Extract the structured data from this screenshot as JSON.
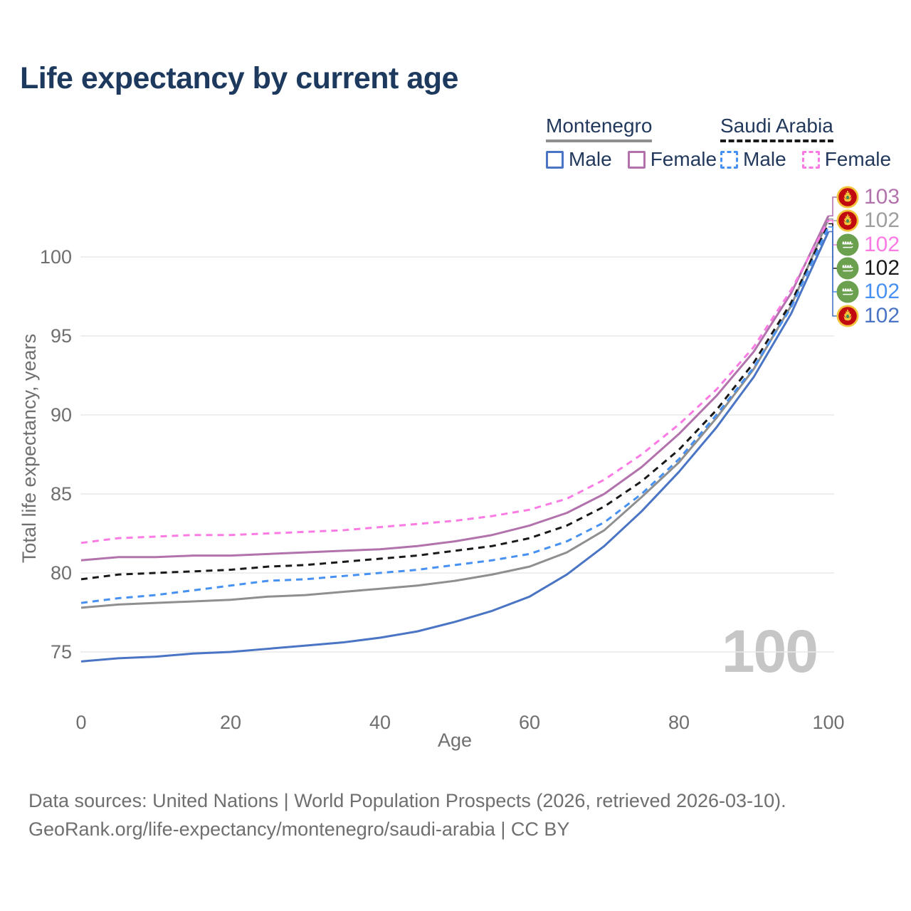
{
  "title": "Life expectancy by current age",
  "legend": {
    "groups": [
      {
        "label": "Montenegro",
        "line_style": "solid",
        "underline_color": "#8f8f8f",
        "items": [
          {
            "label": "Male",
            "color": "#4a74c4",
            "dashed": false
          },
          {
            "label": "Female",
            "color": "#b273ac",
            "dashed": false
          }
        ]
      },
      {
        "label": "Saudi Arabia",
        "line_style": "dashed",
        "underline_color": "#1a1a1a",
        "items": [
          {
            "label": "Male",
            "color": "#4691f1",
            "dashed": true
          },
          {
            "label": "Female",
            "color": "#fb7be4",
            "dashed": true
          }
        ]
      }
    ]
  },
  "chart_data": {
    "type": "line",
    "title": "Life expectancy by current age",
    "xlabel": "Age",
    "ylabel": "Total life expectancy, years",
    "xlim": [
      0,
      100
    ],
    "ylim": [
      73.5,
      103.5
    ],
    "xticks": [
      0,
      20,
      40,
      60,
      80,
      100
    ],
    "yticks": [
      75,
      80,
      85,
      90,
      95,
      100
    ],
    "grid": true,
    "legend_position": "top-right",
    "watermark": "100",
    "x": [
      0,
      5,
      10,
      15,
      20,
      25,
      30,
      35,
      40,
      45,
      50,
      55,
      60,
      65,
      70,
      75,
      80,
      85,
      90,
      95,
      100
    ],
    "series": [
      {
        "name": "Montenegro — Total",
        "country": "Montenegro",
        "sex": "Both",
        "color": "#8f8f8f",
        "dash": null,
        "values": [
          77.8,
          78.0,
          78.1,
          78.2,
          78.3,
          78.5,
          78.6,
          78.8,
          79.0,
          79.2,
          79.5,
          79.9,
          80.4,
          81.3,
          82.7,
          84.8,
          87.0,
          89.8,
          92.9,
          96.9,
          102.4
        ]
      },
      {
        "name": "Montenegro — Female",
        "country": "Montenegro",
        "sex": "Female",
        "color": "#b273ac",
        "dash": null,
        "values": [
          80.8,
          81.0,
          81.0,
          81.1,
          81.1,
          81.2,
          81.3,
          81.4,
          81.5,
          81.7,
          82.0,
          82.4,
          83.0,
          83.8,
          85.0,
          86.7,
          88.8,
          91.2,
          94.0,
          97.7,
          102.6
        ]
      },
      {
        "name": "Montenegro — Male",
        "country": "Montenegro",
        "sex": "Male",
        "color": "#4a74c4",
        "dash": null,
        "values": [
          74.4,
          74.6,
          74.7,
          74.9,
          75.0,
          75.2,
          75.4,
          75.6,
          75.9,
          76.3,
          76.9,
          77.6,
          78.5,
          79.9,
          81.7,
          83.9,
          86.4,
          89.2,
          92.4,
          96.4,
          101.6
        ]
      },
      {
        "name": "Saudi Arabia — Total",
        "country": "Saudi Arabia",
        "sex": "Both",
        "color": "#1a1a1a",
        "dash": [
          9,
          7
        ],
        "values": [
          79.6,
          79.9,
          80.0,
          80.1,
          80.2,
          80.4,
          80.5,
          80.7,
          80.9,
          81.1,
          81.4,
          81.7,
          82.2,
          83.0,
          84.2,
          85.8,
          87.8,
          90.3,
          93.3,
          97.1,
          102.1
        ]
      },
      {
        "name": "Saudi Arabia — Male",
        "country": "Saudi Arabia",
        "sex": "Male",
        "color": "#4691f1",
        "dash": [
          9,
          7
        ],
        "values": [
          78.1,
          78.4,
          78.6,
          78.9,
          79.2,
          79.5,
          79.6,
          79.8,
          80.0,
          80.2,
          80.5,
          80.8,
          81.2,
          82.0,
          83.2,
          85.0,
          87.2,
          90.0,
          93.0,
          96.8,
          101.9
        ]
      },
      {
        "name": "Saudi Arabia — Female",
        "country": "Saudi Arabia",
        "sex": "Female",
        "color": "#fb7be4",
        "dash": [
          9,
          7
        ],
        "values": [
          81.9,
          82.2,
          82.3,
          82.4,
          82.4,
          82.5,
          82.6,
          82.7,
          82.9,
          83.1,
          83.3,
          83.6,
          84.0,
          84.7,
          85.9,
          87.5,
          89.4,
          91.6,
          94.3,
          97.9,
          102.3
        ]
      }
    ],
    "end_labels": [
      {
        "value": "103",
        "flag": "montenegro",
        "color": "#b273ac",
        "series": "Montenegro — Female"
      },
      {
        "value": "102",
        "flag": "montenegro",
        "color": "#9e9e9e",
        "series": "Montenegro — Total"
      },
      {
        "value": "102",
        "flag": "saudi-arabia",
        "color": "#fb7be4",
        "series": "Saudi Arabia — Female"
      },
      {
        "value": "102",
        "flag": "saudi-arabia",
        "color": "#1a1a1a",
        "series": "Saudi Arabia — Total"
      },
      {
        "value": "102",
        "flag": "saudi-arabia",
        "color": "#4691f1",
        "series": "Saudi Arabia — Male"
      },
      {
        "value": "102",
        "flag": "montenegro",
        "color": "#4a74c4",
        "series": "Montenegro — Male"
      }
    ]
  },
  "footer": {
    "line1": "Data sources: United Nations | World Population Prospects (2026, retrieved 2026-03-10).",
    "line2": "GeoRank.org/life-expectancy/montenegro/saudi-arabia | CC BY"
  }
}
